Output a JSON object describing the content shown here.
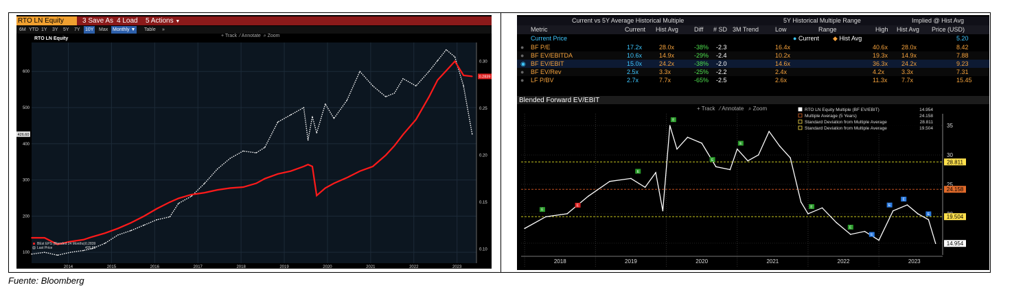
{
  "left_panel": {
    "ticker": "RTO LN Equity",
    "buttons": [
      "Save As",
      "Load",
      "Actions"
    ],
    "periods": [
      "6M",
      "YTD",
      "1Y",
      "3Y",
      "5Y",
      "7Y",
      "10Y",
      "Max"
    ],
    "selected_period": "10Y",
    "frequency": "Monthly",
    "table_label": "Table",
    "tools": [
      "Track",
      "Annotate",
      "Zoom"
    ]
  },
  "right_panel": {
    "header_groups": [
      "Current vs 5Y Average Historical Multiple",
      "5Y Historical Multiple Range",
      "Implied @ Hist Avg"
    ],
    "columns": [
      "Metric",
      "Current",
      "Hist Avg",
      "Diff",
      "# SD",
      "3M Trend",
      "Low",
      "Range",
      "High",
      "Hist Avg",
      "Price (USD)"
    ],
    "range_legend": [
      "Current",
      "Hist Avg"
    ],
    "current_price_label": "Current Price",
    "current_price": "5.20",
    "rows": [
      {
        "metric": "BF P/E",
        "current": "17.2x",
        "hist_avg": "28.0x",
        "diff": "-38%",
        "sd": "-2.3",
        "low": "16.4x",
        "high": "40.6x",
        "implied_avg": "28.0x",
        "price": "8.42",
        "cur_frac": 0.03,
        "avg_frac": 0.48
      },
      {
        "metric": "BF EV/EBITDA",
        "current": "10.6x",
        "hist_avg": "14.9x",
        "diff": "-29%",
        "sd": "-2.4",
        "low": "10.2x",
        "high": "19.3x",
        "implied_avg": "14.9x",
        "price": "7.88",
        "cur_frac": 0.04,
        "avg_frac": 0.52
      },
      {
        "metric": "BF EV/EBIT",
        "current": "15.0x",
        "hist_avg": "24.2x",
        "diff": "-38%",
        "sd": "-2.0",
        "low": "14.6x",
        "high": "36.3x",
        "implied_avg": "24.2x",
        "price": "9.23",
        "cur_frac": 0.02,
        "avg_frac": 0.44
      },
      {
        "metric": "BF EV/Rev",
        "current": "2.5x",
        "hist_avg": "3.3x",
        "diff": "-25%",
        "sd": "-2.2",
        "low": "2.4x",
        "high": "4.2x",
        "implied_avg": "3.3x",
        "price": "7.31",
        "cur_frac": 0.06,
        "avg_frac": 0.5
      },
      {
        "metric": "LF P/BV",
        "current": "2.7x",
        "hist_avg": "7.7x",
        "diff": "-65%",
        "sd": "-2.5",
        "low": "2.6x",
        "high": "11.3x",
        "implied_avg": "7.7x",
        "price": "15.45",
        "cur_frac": 0.01,
        "avg_frac": 0.58
      }
    ],
    "tools": [
      "Track",
      "Annotate",
      "Zoom"
    ]
  },
  "chart_data": [
    {
      "type": "line",
      "title": "RTO LN Equity",
      "x": [
        2013.6,
        2013.9,
        2014.2,
        2014.5,
        2014.8,
        2015.0,
        2015.3,
        2015.6,
        2015.9,
        2016.2,
        2016.5,
        2016.8,
        2017.0,
        2017.3,
        2017.6,
        2017.9,
        2018.2,
        2018.5,
        2018.8,
        2019.0,
        2019.3,
        2019.6,
        2019.9,
        2020.0,
        2020.1,
        2020.2,
        2020.4,
        2020.6,
        2020.9,
        2021.2,
        2021.5,
        2021.8,
        2022.0,
        2022.2,
        2022.5,
        2022.8,
        2023.0,
        2023.2,
        2023.4,
        2023.6,
        2023.8
      ],
      "series": [
        {
          "name": "BEst EPS (Blended 24 Months)",
          "axis": "right",
          "color": "#ff1a1a",
          "values": [
            0.112,
            0.112,
            0.105,
            0.108,
            0.11,
            0.113,
            0.117,
            0.122,
            0.128,
            0.135,
            0.143,
            0.15,
            0.154,
            0.158,
            0.16,
            0.163,
            0.165,
            0.166,
            0.17,
            0.175,
            0.18,
            0.183,
            0.188,
            0.19,
            0.188,
            0.157,
            0.165,
            0.17,
            0.176,
            0.183,
            0.188,
            0.2,
            0.21,
            0.222,
            0.238,
            0.262,
            0.28,
            0.29,
            0.3,
            0.285,
            0.2839
          ]
        },
        {
          "name": "Last Price",
          "axis": "left",
          "color": "#ffffff",
          "dotted": true,
          "values": [
            95,
            100,
            92,
            100,
            105,
            110,
            125,
            148,
            160,
            175,
            190,
            198,
            235,
            255,
            290,
            330,
            360,
            380,
            375,
            390,
            460,
            480,
            500,
            410,
            475,
            430,
            510,
            470,
            520,
            600,
            560,
            530,
            540,
            580,
            560,
            600,
            630,
            660,
            640,
            560,
            426.6
          ]
        }
      ],
      "legend": [
        "BEst EPS (Blended 24 Months) 0.2839",
        "Last Price 426.60"
      ],
      "legend_values": [
        "0.2839",
        "426.60"
      ],
      "x_ticks": [
        "2014",
        "2015",
        "2016",
        "2017",
        "2018",
        "2019",
        "2020",
        "2021",
        "2022",
        "2023"
      ],
      "left_ticks": [
        "100",
        "200",
        "300",
        "400",
        "500",
        "600"
      ],
      "right_ticks": [
        "0.10",
        "0.15",
        "0.20",
        "0.25",
        "0.30"
      ],
      "last_price_label": "426.60",
      "last_eps_label": "0.2839",
      "ylim_left": [
        70,
        680
      ],
      "ylim_right": [
        0.085,
        0.32
      ]
    },
    {
      "type": "line",
      "title": "Blended Forward EV/EBIT",
      "x": [
        2018.0,
        2018.3,
        2018.6,
        2018.9,
        2019.2,
        2019.5,
        2019.7,
        2019.85,
        2019.95,
        2020.05,
        2020.15,
        2020.3,
        2020.5,
        2020.7,
        2020.9,
        2021.0,
        2021.15,
        2021.3,
        2021.45,
        2021.6,
        2021.75,
        2021.9,
        2022.0,
        2022.2,
        2022.4,
        2022.6,
        2022.8,
        2023.0,
        2023.2,
        2023.4,
        2023.55,
        2023.7,
        2023.8
      ],
      "series": [
        {
          "name": "RTO LN Equity Multiple (BF EV/EBIT)",
          "color": "#ffffff",
          "values": [
            17.5,
            19.5,
            20.0,
            23.0,
            25.5,
            26.0,
            24.5,
            27.0,
            20.5,
            35.0,
            31.0,
            33.0,
            32.0,
            28.0,
            27.5,
            31.0,
            29.0,
            30.0,
            34.0,
            31.5,
            29.5,
            22.0,
            20.0,
            21.0,
            18.5,
            16.5,
            17.0,
            15.5,
            20.5,
            21.5,
            20.0,
            19.0,
            14.954
          ]
        }
      ],
      "legend": [
        "RTO LN Equity Multiple (BF EV/EBIT) 14.954",
        "Multiple Average (5 Years) 24.158",
        "+1 Standard Deviation from Multiple Average 28.811",
        "-1 Standard Deviation from Multiple Average 19.504"
      ],
      "reference_lines": [
        {
          "name": "Multiple Average (5 Years)",
          "value": 24.158,
          "color": "#c05020"
        },
        {
          "name": "+1 Standard Deviation from Multiple Average",
          "value": 28.811,
          "color": "#c8c820"
        },
        {
          "name": "-1 Standard Deviation from Multiple Average",
          "value": 19.504,
          "color": "#c8c820"
        }
      ],
      "value_labels": [
        "28.811",
        "24.158",
        "19.504",
        "14.954"
      ],
      "x_ticks": [
        "2018",
        "2019",
        "2020",
        "2021",
        "2022",
        "2023"
      ],
      "right_ticks": [
        "35",
        "30",
        "25",
        "20",
        "15"
      ],
      "ylim": [
        13,
        37
      ]
    }
  ],
  "source": "Fuente: Bloomberg"
}
